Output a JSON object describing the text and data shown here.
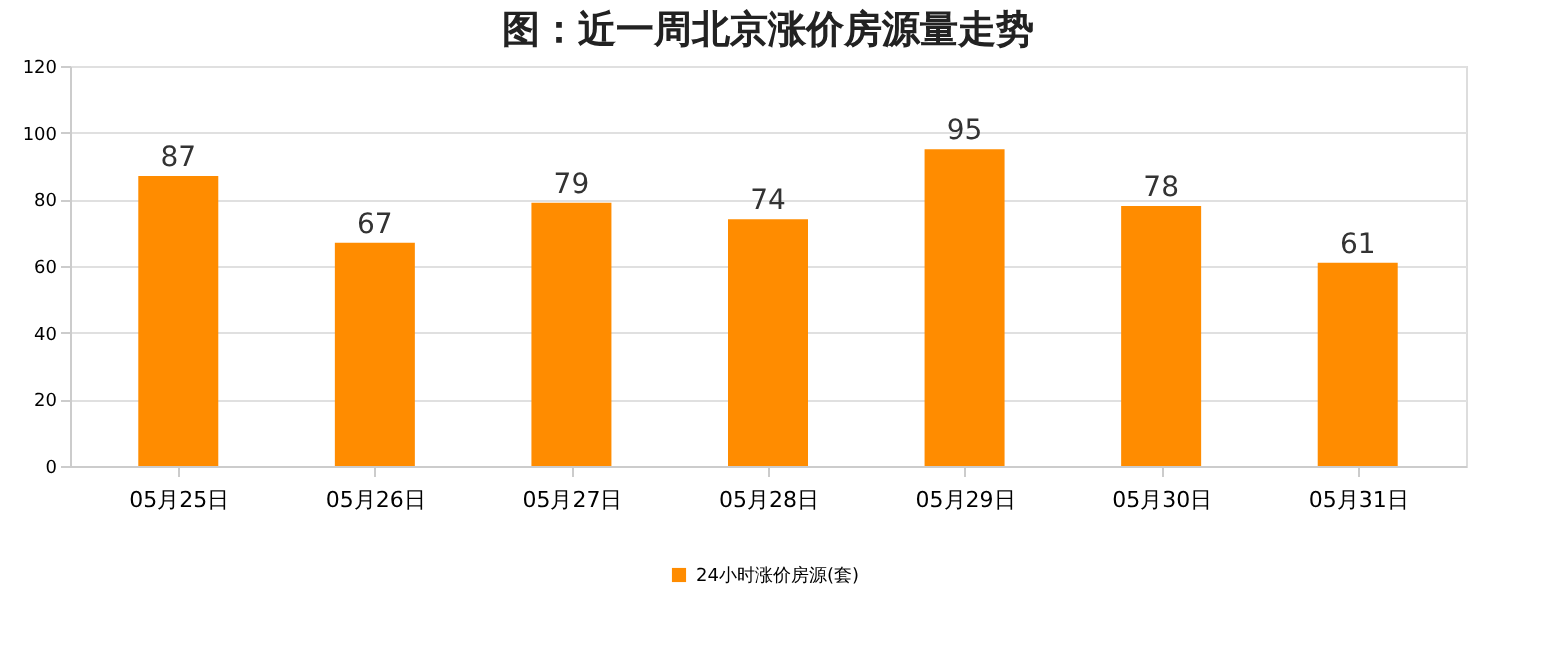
{
  "chart_data": {
    "type": "bar",
    "title": "图：近一周北京涨价房源量走势",
    "categories": [
      "05月25日",
      "05月26日",
      "05月27日",
      "05月28日",
      "05月29日",
      "05月30日",
      "05月31日"
    ],
    "series": [
      {
        "name": "24小时涨价房源(套)",
        "color": "#ff8c00",
        "values": [
          87,
          67,
          79,
          74,
          95,
          78,
          61
        ]
      }
    ],
    "ylim": [
      0,
      120
    ],
    "yticks": [
      0,
      20,
      40,
      60,
      80,
      100,
      120
    ],
    "grid": "y",
    "legend": "bottom",
    "data_labels": true
  }
}
